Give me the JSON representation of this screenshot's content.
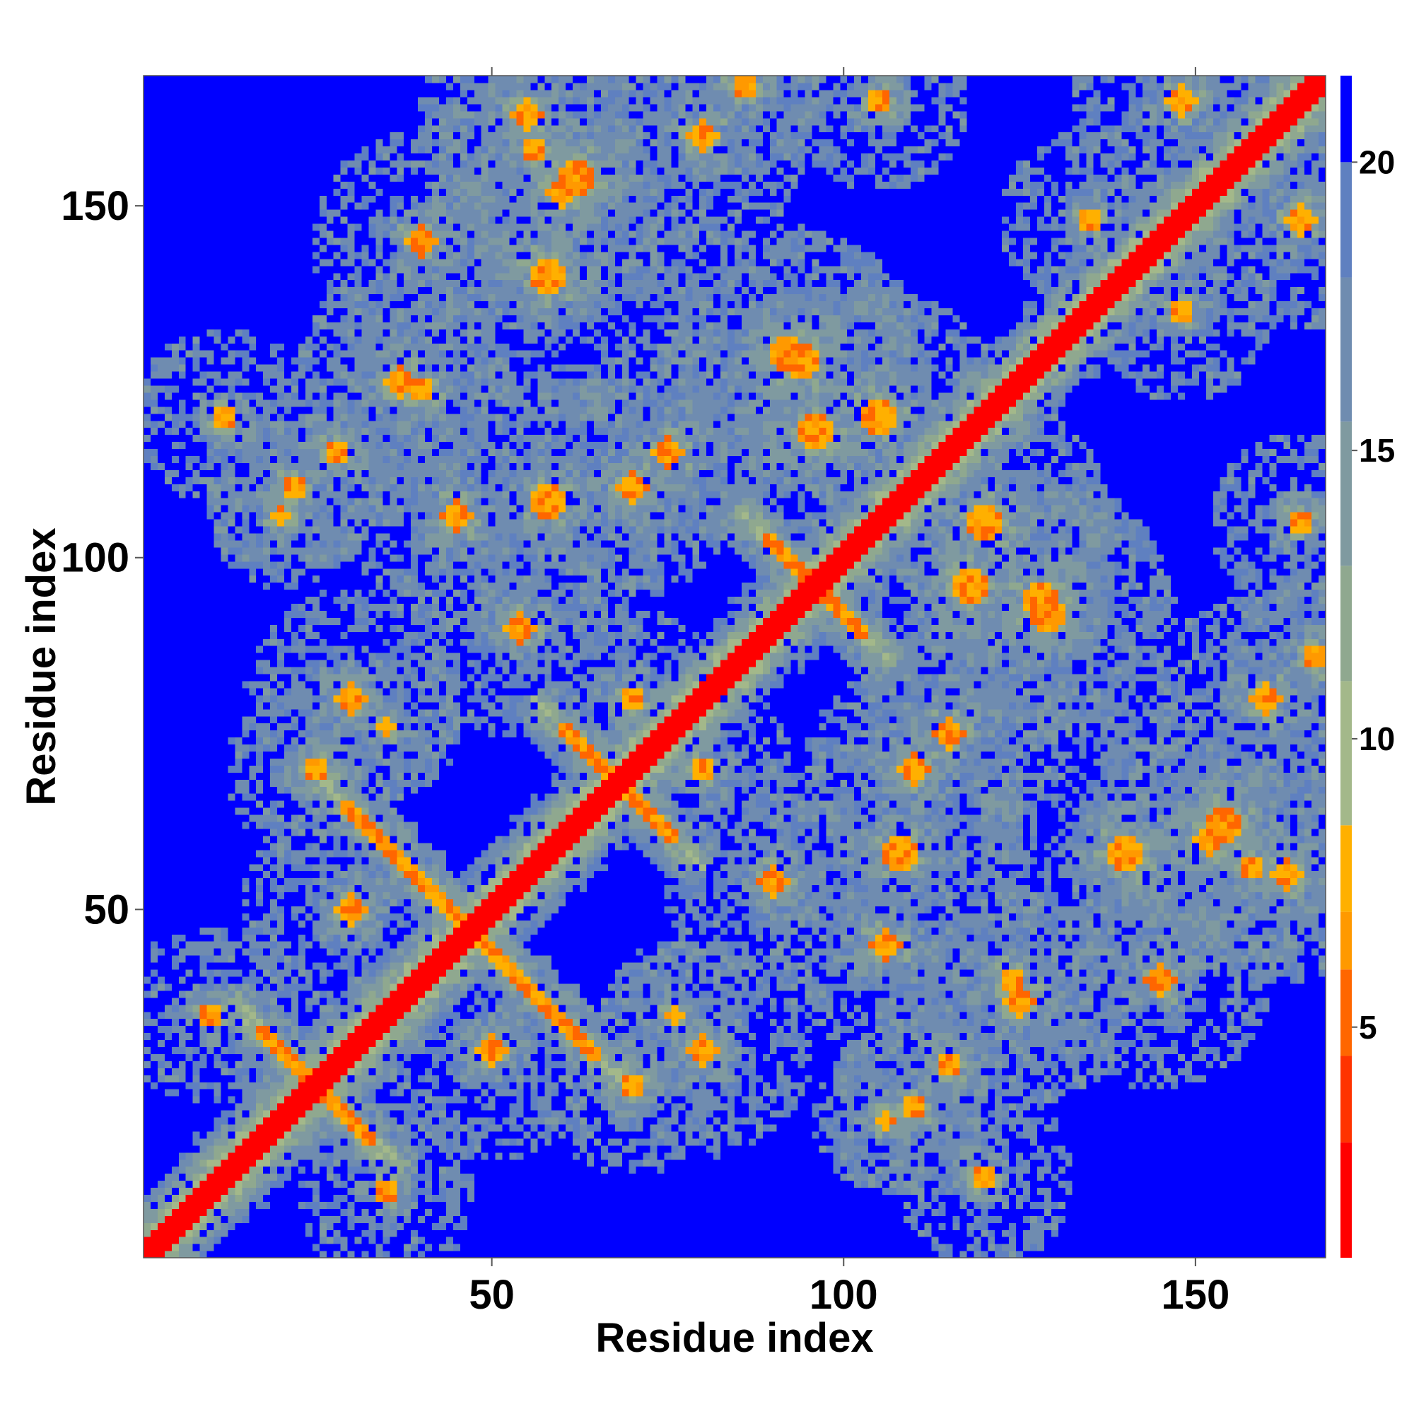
{
  "chart_data": {
    "type": "heatmap",
    "title": "",
    "xlabel": "Residue index",
    "ylabel": "Residue index",
    "n_residues": 168,
    "xlim": [
      1,
      168
    ],
    "ylim": [
      1,
      168
    ],
    "x_ticks": [
      50,
      100,
      150
    ],
    "y_ticks": [
      50,
      100,
      150
    ],
    "colorbar": {
      "ticks": [
        5,
        10,
        15,
        20
      ],
      "range": [
        1,
        21.5
      ],
      "colors": [
        "#ff0000",
        "#ff3300",
        "#ff6600",
        "#ff9900",
        "#ffb000",
        "#a3b88a",
        "#8fa88f",
        "#7f9aa0",
        "#6f8cb0",
        "#5f80c0",
        "#0000ff"
      ],
      "levels": [
        0,
        3,
        4.5,
        6,
        7,
        8.5,
        11,
        13,
        15.5,
        18,
        20
      ]
    },
    "matrix_description": "Symmetric residue-residue distance map; red diagonal (distance below 4), orange anti-diagonal sheet contacts, blue background above 20",
    "features": {
      "diagonal_width": 2,
      "helices": [
        [
          112,
          132
        ],
        [
          60,
          70
        ],
        [
          80,
          88
        ]
      ],
      "antiparallel_strands": [
        {
          "center": [
            47,
            47
          ],
          "half_length": 18
        },
        {
          "center": [
            68,
            68
          ],
          "half_length": 8
        },
        {
          "center": [
            96,
            96
          ],
          "half_length": 7
        },
        {
          "center": [
            25,
            25
          ],
          "half_length": 8
        }
      ],
      "off_diagonal_contacts": [
        [
          55,
          163,
          6
        ],
        [
          62,
          154,
          8
        ],
        [
          86,
          167,
          5
        ],
        [
          40,
          124,
          5
        ],
        [
          92,
          129,
          7
        ],
        [
          105,
          120,
          7
        ],
        [
          118,
          96,
          8
        ],
        [
          128,
          94,
          7
        ],
        [
          125,
          37,
          6
        ],
        [
          140,
          58,
          8
        ],
        [
          152,
          60,
          6
        ],
        [
          158,
          56,
          5
        ],
        [
          30,
          80,
          6
        ],
        [
          35,
          76,
          4
        ],
        [
          12,
          120,
          5
        ],
        [
          22,
          110,
          5
        ],
        [
          110,
          70,
          6
        ],
        [
          80,
          70,
          5
        ],
        [
          90,
          54,
          6
        ],
        [
          106,
          20,
          4
        ],
        [
          145,
          40,
          6
        ],
        [
          160,
          80,
          6
        ],
        [
          165,
          105,
          5
        ],
        [
          148,
          165,
          6
        ],
        [
          135,
          148,
          5
        ],
        [
          50,
          30,
          6
        ],
        [
          10,
          35,
          5
        ],
        [
          70,
          25,
          5
        ],
        [
          115,
          28,
          5
        ],
        [
          58,
          108,
          7
        ],
        [
          45,
          106,
          6
        ],
        [
          75,
          115,
          6
        ]
      ]
    }
  }
}
